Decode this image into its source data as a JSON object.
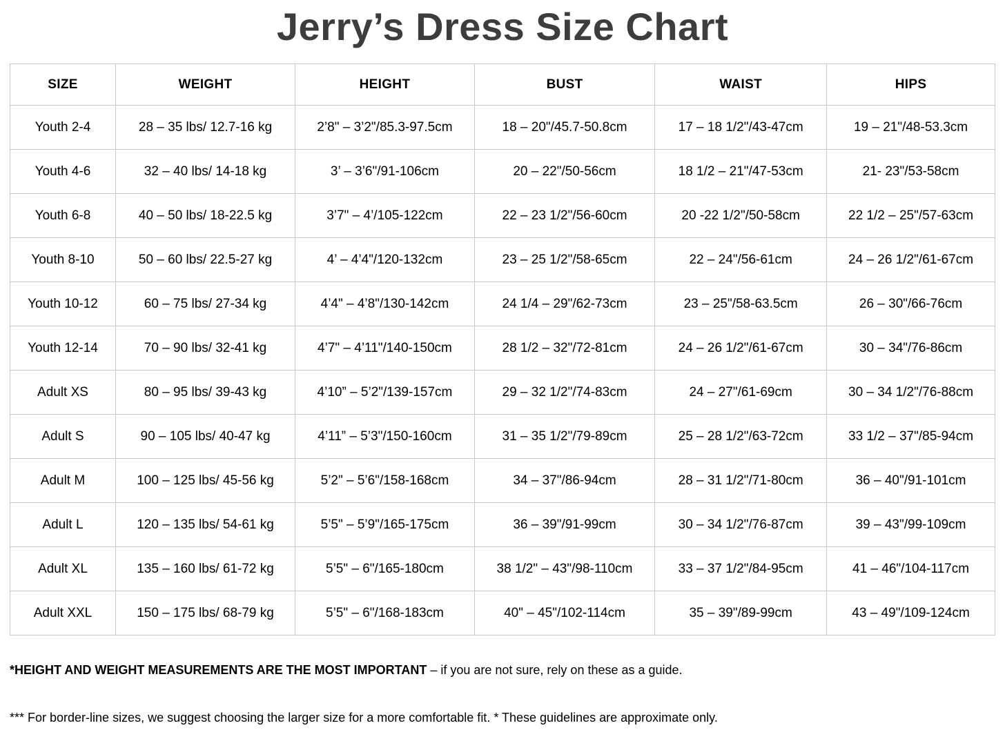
{
  "page": {
    "title": "Jerry’s Dress Size Chart"
  },
  "table": {
    "columns": [
      "SIZE",
      "WEIGHT",
      "HEIGHT",
      "BUST",
      "WAIST",
      "HIPS"
    ],
    "rows": [
      [
        "Youth 2-4",
        "28 – 35 lbs/ 12.7-16 kg",
        "2’8\" – 3’2\"/85.3-97.5cm",
        "18 – 20\"/45.7-50.8cm",
        "17 – 18 1/2\"/43-47cm",
        "19 – 21\"/48-53.3cm"
      ],
      [
        "Youth 4-6",
        "32 – 40 lbs/ 14-18 kg",
        "3’ – 3’6\"/91-106cm",
        "20 – 22\"/50-56cm",
        "18 1/2 – 21\"/47-53cm",
        "21- 23\"/53-58cm"
      ],
      [
        "Youth 6-8",
        "40 – 50 lbs/ 18-22.5 kg",
        "3’7\" – 4’/105-122cm",
        "22 – 23 1/2\"/56-60cm",
        "20 -22 1/2\"/50-58cm",
        "22 1/2 – 25\"/57-63cm"
      ],
      [
        "Youth 8-10",
        "50 – 60 lbs/ 22.5-27 kg",
        "4’ – 4’4\"/120-132cm",
        "23 – 25 1/2\"/58-65cm",
        "22 – 24\"/56-61cm",
        "24 – 26 1/2\"/61-67cm"
      ],
      [
        "Youth 10-12",
        "60 – 75 lbs/ 27-34 kg",
        "4’4\" – 4’8\"/130-142cm",
        "24 1/4 – 29\"/62-73cm",
        "23 – 25\"/58-63.5cm",
        "26 – 30\"/66-76cm"
      ],
      [
        "Youth 12-14",
        "70 – 90 lbs/ 32-41 kg",
        "4’7\" – 4’11\"/140-150cm",
        "28 1/2 – 32\"/72-81cm",
        "24 – 26 1/2\"/61-67cm",
        "30 – 34\"/76-86cm"
      ],
      [
        "Adult XS",
        "80 – 95 lbs/ 39-43 kg",
        "4’10” – 5’2\"/139-157cm",
        "29 – 32 1/2\"/74-83cm",
        "24 – 27\"/61-69cm",
        "30 – 34 1/2\"/76-88cm"
      ],
      [
        "Adult S",
        "90 – 105 lbs/ 40-47 kg",
        "4’11” – 5’3\"/150-160cm",
        "31 – 35 1/2\"/79-89cm",
        "25 – 28 1/2\"/63-72cm",
        "33 1/2 – 37\"/85-94cm"
      ],
      [
        "Adult M",
        "100 – 125 lbs/ 45-56 kg",
        "5’2\" – 5’6\"/158-168cm",
        "34 – 37\"/86-94cm",
        "28 – 31 1/2\"/71-80cm",
        "36 – 40\"/91-101cm"
      ],
      [
        "Adult L",
        "120 – 135 lbs/ 54-61 kg",
        "5’5\" – 5’9\"/165-175cm",
        "36 – 39\"/91-99cm",
        "30 – 34 1/2\"/76-87cm",
        "39 – 43\"/99-109cm"
      ],
      [
        "Adult XL",
        "135 – 160 lbs/ 61-72 kg",
        "5’5\" – 6\"/165-180cm",
        "38 1/2\" – 43\"/98-110cm",
        "33 – 37 1/2\"/84-95cm",
        "41 – 46\"/104-117cm"
      ],
      [
        "Adult XXL",
        "150 – 175 lbs/ 68-79 kg",
        "5’5\" – 6\"/168-183cm",
        "40\" – 45\"/102-114cm",
        "35 – 39\"/89-99cm",
        "43 – 49\"/109-124cm"
      ]
    ]
  },
  "notes": {
    "note1_bold": "*HEIGHT AND WEIGHT MEASUREMENTS ARE THE MOST IMPORTANT",
    "note1_rest": " – if you are not sure, rely on these as a guide.",
    "note2": "*** For border-line sizes, we suggest choosing the larger size for a more comfortable fit. * These guidelines are approximate only."
  },
  "colors": {
    "title_text": "#3d3d3d",
    "body_text": "#000000",
    "table_border": "#c9c9c9",
    "background": "#ffffff"
  }
}
